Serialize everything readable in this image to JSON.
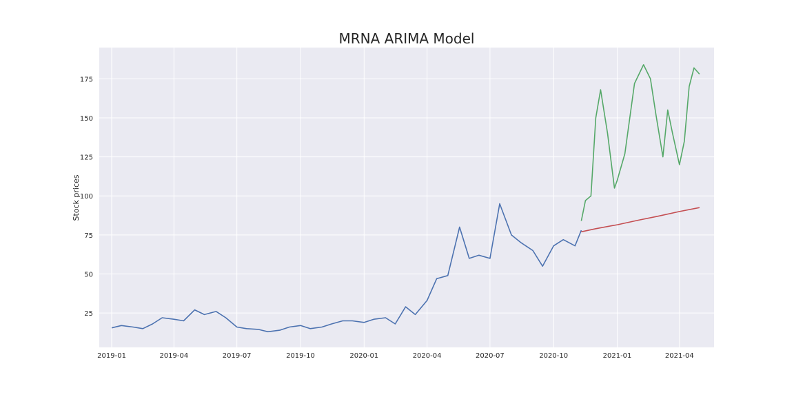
{
  "chart_data": {
    "type": "line",
    "title": "MRNA ARIMA Model",
    "xlabel": "",
    "ylabel": "Stock prices",
    "grid": true,
    "legend": "none",
    "x_ticks": [
      "2019-01",
      "2019-04",
      "2019-07",
      "2019-10",
      "2020-01",
      "2020-04",
      "2020-07",
      "2020-10",
      "2021-01",
      "2021-04"
    ],
    "y_ticks": [
      25,
      50,
      75,
      100,
      125,
      150,
      175
    ],
    "xlim": [
      "2018-12-14",
      "2021-05-21"
    ],
    "ylim": [
      3,
      195
    ],
    "colors": {
      "background": "#eaeaf2",
      "grid": "#ffffff",
      "train": "#4c72b0",
      "forecast": "#c44e52",
      "actual": "#55a868"
    },
    "series": [
      {
        "key": "train",
        "x": [
          "2019-01-01",
          "2019-01-15",
          "2019-02-01",
          "2019-02-15",
          "2019-03-01",
          "2019-03-15",
          "2019-04-01",
          "2019-04-15",
          "2019-05-01",
          "2019-05-15",
          "2019-06-01",
          "2019-06-15",
          "2019-07-01",
          "2019-07-15",
          "2019-08-01",
          "2019-08-15",
          "2019-09-01",
          "2019-09-15",
          "2019-10-01",
          "2019-10-15",
          "2019-11-01",
          "2019-11-15",
          "2019-12-01",
          "2019-12-15",
          "2020-01-01",
          "2020-01-15",
          "2020-02-01",
          "2020-02-15",
          "2020-03-01",
          "2020-03-15",
          "2020-04-01",
          "2020-04-15",
          "2020-05-01",
          "2020-05-18",
          "2020-06-01",
          "2020-06-15",
          "2020-07-01",
          "2020-07-15",
          "2020-08-01",
          "2020-08-15",
          "2020-09-01",
          "2020-09-15",
          "2020-10-01",
          "2020-10-15",
          "2020-11-01",
          "2020-11-10"
        ],
        "values": [
          15.5,
          17,
          16,
          15,
          18,
          22,
          21,
          20,
          27,
          24,
          26,
          22,
          16,
          15,
          14.5,
          13,
          14,
          16,
          17,
          15,
          16,
          18,
          20,
          20,
          19,
          21,
          22,
          18,
          29,
          24,
          33,
          47,
          49,
          80,
          60,
          62,
          60,
          95,
          75,
          70,
          65,
          55,
          68,
          72,
          68,
          78
        ]
      },
      {
        "key": "forecast",
        "x": [
          "2020-11-10",
          "2020-12-01",
          "2021-01-01",
          "2021-02-01",
          "2021-03-01",
          "2021-04-01",
          "2021-04-30"
        ],
        "values": [
          77,
          79,
          81.5,
          84.5,
          87,
          90,
          92.5
        ]
      },
      {
        "key": "actual",
        "x": [
          "2020-11-10",
          "2020-11-16",
          "2020-11-24",
          "2020-12-01",
          "2020-12-08",
          "2020-12-18",
          "2020-12-28",
          "2021-01-01",
          "2021-01-12",
          "2021-01-26",
          "2021-02-08",
          "2021-02-18",
          "2021-02-26",
          "2021-03-08",
          "2021-03-15",
          "2021-03-22",
          "2021-04-01",
          "2021-04-08",
          "2021-04-15",
          "2021-04-22",
          "2021-04-30"
        ],
        "values": [
          84,
          97,
          100,
          150,
          168,
          140,
          105,
          110,
          127,
          172,
          184,
          175,
          152,
          125,
          155,
          140,
          120,
          135,
          170,
          182,
          178
        ]
      }
    ]
  }
}
